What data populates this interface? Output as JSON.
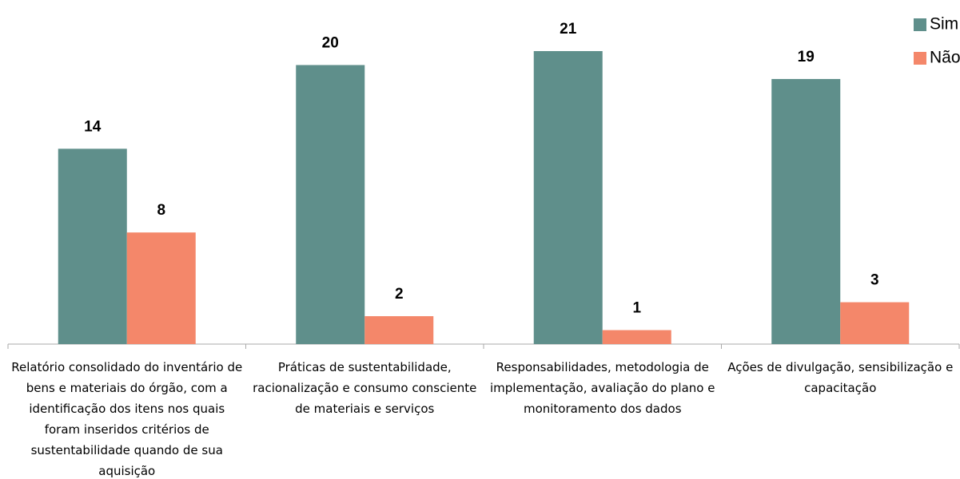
{
  "chart_data": {
    "type": "bar",
    "categories": [
      "Relatório consolidado do inventário de bens e materiais do órgão, com a identificação dos itens nos quais foram inseridos critérios de sustentabilidade quando de sua aquisição",
      "Práticas de sustentabilidade, racionalização e consumo consciente de materiais e serviços",
      "Responsabilidades, metodologia de implementação, avaliação do plano e monitoramento dos dados",
      "Ações de divulgação, sensibilização e capacitação"
    ],
    "series": [
      {
        "name": "Sim",
        "color": "#5f8f8b",
        "values": [
          14,
          20,
          21,
          19
        ]
      },
      {
        "name": "Não",
        "color": "#f4876a",
        "values": [
          8,
          2,
          1,
          3
        ]
      }
    ],
    "ylim": [
      0,
      21
    ],
    "legend": "top-right"
  }
}
